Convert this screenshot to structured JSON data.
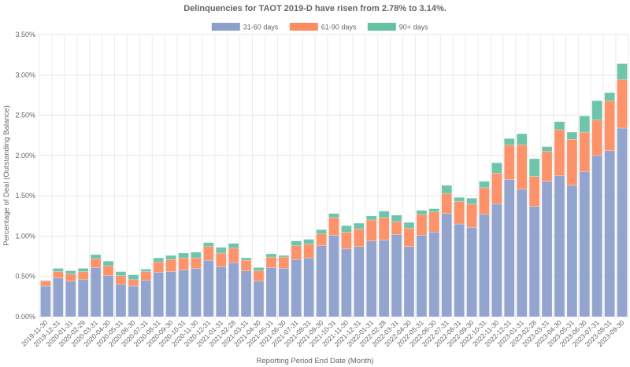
{
  "chart_data": {
    "type": "bar",
    "stacked": true,
    "title": "Delinquencies for TAOT 2019-D have risen from 2.78% to 3.14%.",
    "xlabel": "Reporting Period End Date (Month)",
    "ylabel": "Percentage of Deal (Outstanding Balance)",
    "ylim": [
      0,
      3.5
    ],
    "yticks": [
      "0.00%",
      "0.50%",
      "1.00%",
      "1.50%",
      "2.00%",
      "2.50%",
      "3.00%",
      "3.50%"
    ],
    "grid": true,
    "legend_position": "top",
    "categories": [
      "2019-11-30",
      "2019-12-31",
      "2020-01-31",
      "2020-02-29",
      "2020-03-31",
      "2020-04-30",
      "2020-05-31",
      "2020-06-30",
      "2020-07-31",
      "2020-08-31",
      "2020-09-30",
      "2020-10-31",
      "2020-11-30",
      "2020-12-31",
      "2021-01-31",
      "2021-02-28",
      "2021-03-31",
      "2021-04-30",
      "2021-05-31",
      "2021-06-30",
      "2021-07-31",
      "2021-08-31",
      "2021-09-30",
      "2021-10-31",
      "2021-11-30",
      "2021-12-31",
      "2022-01-31",
      "2022-02-28",
      "2022-03-31",
      "2022-04-30",
      "2022-05-31",
      "2022-06-30",
      "2022-07-31",
      "2022-08-31",
      "2022-09-30",
      "2022-10-31",
      "2022-11-30",
      "2022-12-31",
      "2023-01-31",
      "2023-02-28",
      "2023-03-31",
      "2023-04-30",
      "2023-05-31",
      "2023-06-30",
      "2023-07-31",
      "2023-08-31",
      "2023-09-30"
    ],
    "series": [
      {
        "name": "31-60 days",
        "color": "#8da0cb",
        "values": [
          0.38,
          0.48,
          0.44,
          0.46,
          0.61,
          0.51,
          0.4,
          0.38,
          0.45,
          0.55,
          0.56,
          0.58,
          0.6,
          0.7,
          0.62,
          0.67,
          0.57,
          0.44,
          0.61,
          0.6,
          0.71,
          0.73,
          0.88,
          1.01,
          0.84,
          0.87,
          0.94,
          0.95,
          1.02,
          0.87,
          1.01,
          1.05,
          1.28,
          1.15,
          1.11,
          1.27,
          1.4,
          1.7,
          1.58,
          1.37,
          1.68,
          1.75,
          1.63,
          1.8,
          2.0,
          2.06,
          2.34
        ]
      },
      {
        "name": "61-90 days",
        "color": "#fc8d62",
        "values": [
          0.06,
          0.08,
          0.09,
          0.1,
          0.11,
          0.12,
          0.11,
          0.08,
          0.11,
          0.13,
          0.15,
          0.15,
          0.13,
          0.17,
          0.17,
          0.18,
          0.13,
          0.13,
          0.13,
          0.14,
          0.17,
          0.17,
          0.15,
          0.22,
          0.21,
          0.22,
          0.26,
          0.28,
          0.16,
          0.23,
          0.26,
          0.25,
          0.25,
          0.28,
          0.29,
          0.33,
          0.38,
          0.43,
          0.55,
          0.37,
          0.37,
          0.57,
          0.57,
          0.49,
          0.44,
          0.62,
          0.6
        ]
      },
      {
        "name": "90+ days",
        "color": "#66c2a5",
        "values": [
          0.01,
          0.04,
          0.04,
          0.04,
          0.05,
          0.06,
          0.05,
          0.06,
          0.03,
          0.05,
          0.05,
          0.06,
          0.07,
          0.05,
          0.07,
          0.06,
          0.03,
          0.04,
          0.04,
          0.02,
          0.06,
          0.06,
          0.05,
          0.05,
          0.08,
          0.07,
          0.05,
          0.08,
          0.08,
          0.07,
          0.05,
          0.04,
          0.1,
          0.05,
          0.07,
          0.08,
          0.13,
          0.08,
          0.14,
          0.22,
          0.06,
          0.1,
          0.09,
          0.2,
          0.24,
          0.1,
          0.2
        ]
      }
    ]
  }
}
